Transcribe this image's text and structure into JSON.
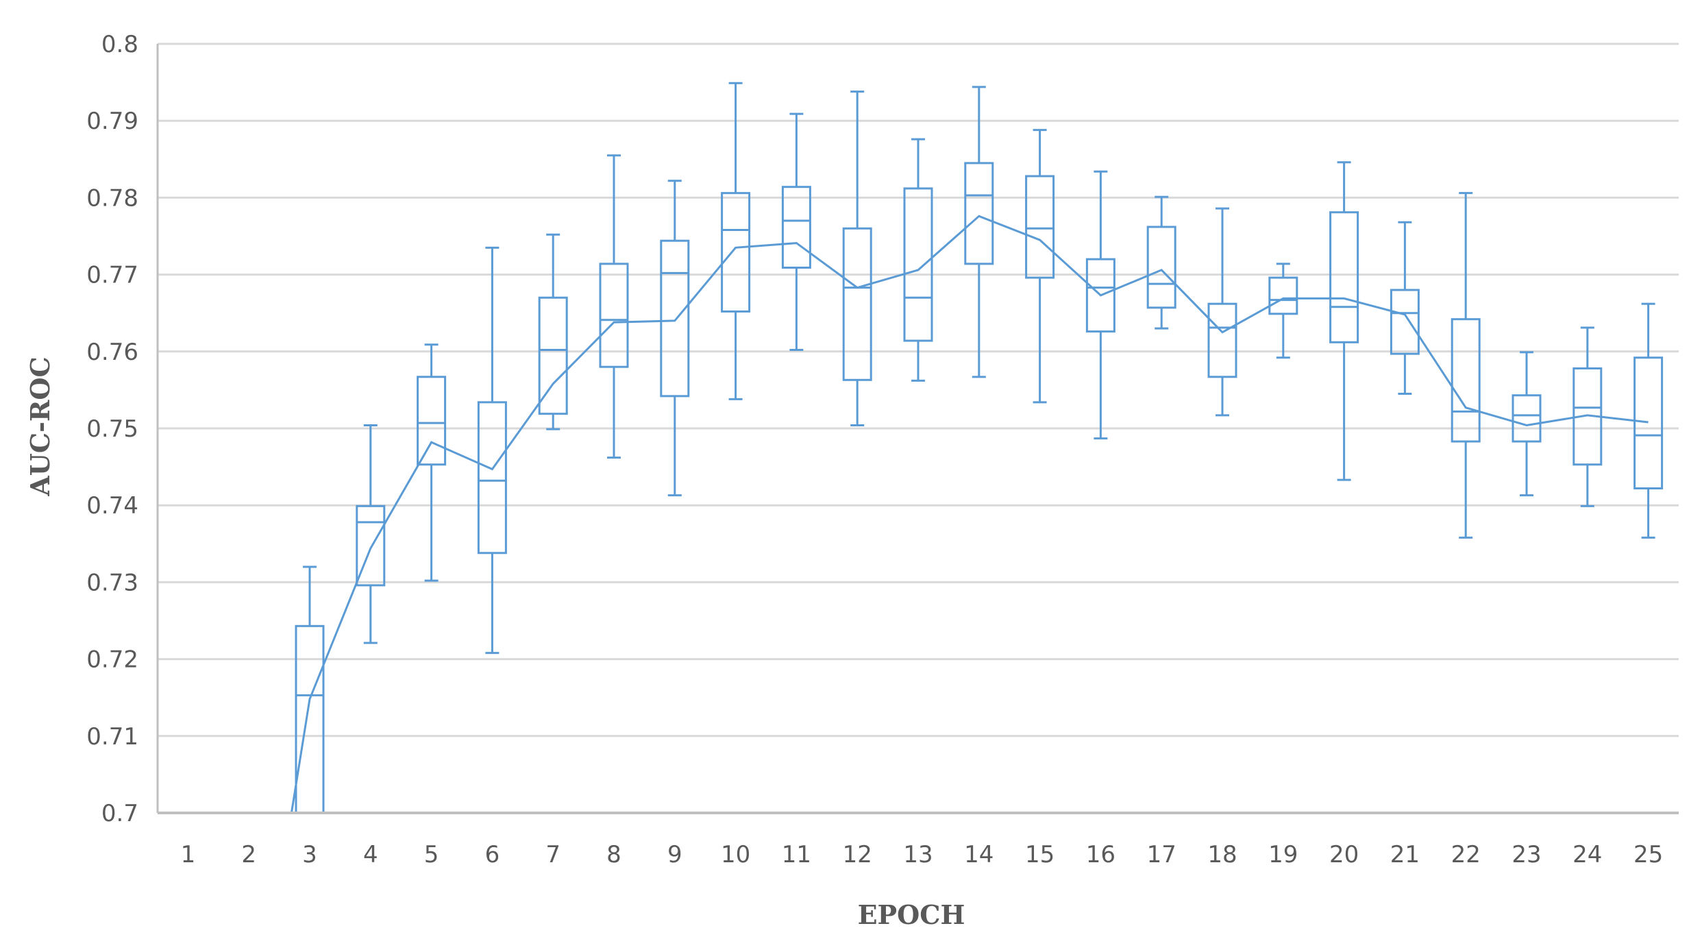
{
  "chart_data": {
    "type": "box",
    "xlabel": "EPOCH",
    "ylabel": "AUC-ROC",
    "ylim": [
      0.7,
      0.8
    ],
    "yticks": [
      "0.7",
      "0.71",
      "0.72",
      "0.73",
      "0.74",
      "0.75",
      "0.76",
      "0.77",
      "0.78",
      "0.79",
      "0.8"
    ],
    "categories": [
      "1",
      "2",
      "3",
      "4",
      "5",
      "6",
      "7",
      "8",
      "9",
      "10",
      "11",
      "12",
      "13",
      "14",
      "15",
      "16",
      "17",
      "18",
      "19",
      "20",
      "21",
      "22",
      "23",
      "24",
      "25"
    ],
    "grid": true,
    "color": "#5b9bd5",
    "boxes": [
      {
        "epoch": "1",
        "min": null,
        "q1": null,
        "median": null,
        "q3": null,
        "max": null
      },
      {
        "epoch": "2",
        "min": 0.7,
        "q1": 0.7,
        "median": 0.7,
        "q3": 0.7,
        "max": 0.7
      },
      {
        "epoch": "3",
        "min": 0.7,
        "q1": 0.7,
        "median": 0.7153,
        "q3": 0.7243,
        "max": 0.732
      },
      {
        "epoch": "4",
        "min": 0.7221,
        "q1": 0.7296,
        "median": 0.7378,
        "q3": 0.7399,
        "max": 0.7504
      },
      {
        "epoch": "5",
        "min": 0.7302,
        "q1": 0.7453,
        "median": 0.7507,
        "q3": 0.7567,
        "max": 0.7609
      },
      {
        "epoch": "6",
        "min": 0.7208,
        "q1": 0.7338,
        "median": 0.7432,
        "q3": 0.7534,
        "max": 0.7735
      },
      {
        "epoch": "7",
        "min": 0.7499,
        "q1": 0.7519,
        "median": 0.7602,
        "q3": 0.767,
        "max": 0.7752
      },
      {
        "epoch": "8",
        "min": 0.7462,
        "q1": 0.758,
        "median": 0.7641,
        "q3": 0.7714,
        "max": 0.7855
      },
      {
        "epoch": "9",
        "min": 0.7413,
        "q1": 0.7542,
        "median": 0.7702,
        "q3": 0.7744,
        "max": 0.7822
      },
      {
        "epoch": "10",
        "min": 0.7538,
        "q1": 0.7652,
        "median": 0.7758,
        "q3": 0.7806,
        "max": 0.7949
      },
      {
        "epoch": "11",
        "min": 0.7602,
        "q1": 0.7709,
        "median": 0.777,
        "q3": 0.7814,
        "max": 0.7909
      },
      {
        "epoch": "12",
        "min": 0.7504,
        "q1": 0.7563,
        "median": 0.7683,
        "q3": 0.776,
        "max": 0.7938
      },
      {
        "epoch": "13",
        "min": 0.7562,
        "q1": 0.7614,
        "median": 0.767,
        "q3": 0.7812,
        "max": 0.7876
      },
      {
        "epoch": "14",
        "min": 0.7567,
        "q1": 0.7714,
        "median": 0.7803,
        "q3": 0.7845,
        "max": 0.7944
      },
      {
        "epoch": "15",
        "min": 0.7534,
        "q1": 0.7696,
        "median": 0.776,
        "q3": 0.7828,
        "max": 0.7888
      },
      {
        "epoch": "16",
        "min": 0.7487,
        "q1": 0.7626,
        "median": 0.7683,
        "q3": 0.772,
        "max": 0.7834
      },
      {
        "epoch": "17",
        "min": 0.763,
        "q1": 0.7657,
        "median": 0.7688,
        "q3": 0.7762,
        "max": 0.7801
      },
      {
        "epoch": "18",
        "min": 0.7517,
        "q1": 0.7567,
        "median": 0.7631,
        "q3": 0.7662,
        "max": 0.7786
      },
      {
        "epoch": "19",
        "min": 0.7592,
        "q1": 0.7649,
        "median": 0.7667,
        "q3": 0.7696,
        "max": 0.7714
      },
      {
        "epoch": "20",
        "min": 0.7433,
        "q1": 0.7612,
        "median": 0.7658,
        "q3": 0.7781,
        "max": 0.7846
      },
      {
        "epoch": "21",
        "min": 0.7545,
        "q1": 0.7597,
        "median": 0.765,
        "q3": 0.768,
        "max": 0.7768
      },
      {
        "epoch": "22",
        "min": 0.7358,
        "q1": 0.7483,
        "median": 0.7522,
        "q3": 0.7642,
        "max": 0.7806
      },
      {
        "epoch": "23",
        "min": 0.7413,
        "q1": 0.7483,
        "median": 0.7517,
        "q3": 0.7543,
        "max": 0.7599
      },
      {
        "epoch": "24",
        "min": 0.7399,
        "q1": 0.7453,
        "median": 0.7527,
        "q3": 0.7578,
        "max": 0.7631
      },
      {
        "epoch": "25",
        "min": 0.7358,
        "q1": 0.7422,
        "median": 0.7491,
        "q3": 0.7592,
        "max": 0.7662
      }
    ],
    "mean_line": {
      "x": [
        "3",
        "4",
        "5",
        "6",
        "7",
        "8",
        "9",
        "10",
        "11",
        "12",
        "13",
        "14",
        "15",
        "16",
        "17",
        "18",
        "19",
        "20",
        "21",
        "22",
        "23",
        "24",
        "25"
      ],
      "values": [
        0.7148,
        0.7344,
        0.7482,
        0.7447,
        0.7558,
        0.7638,
        0.764,
        0.7735,
        0.7741,
        0.7683,
        0.7706,
        0.7776,
        0.7745,
        0.7673,
        0.7706,
        0.7625,
        0.7669,
        0.7669,
        0.7648,
        0.7527,
        0.7504,
        0.7517,
        0.7508
      ]
    }
  }
}
